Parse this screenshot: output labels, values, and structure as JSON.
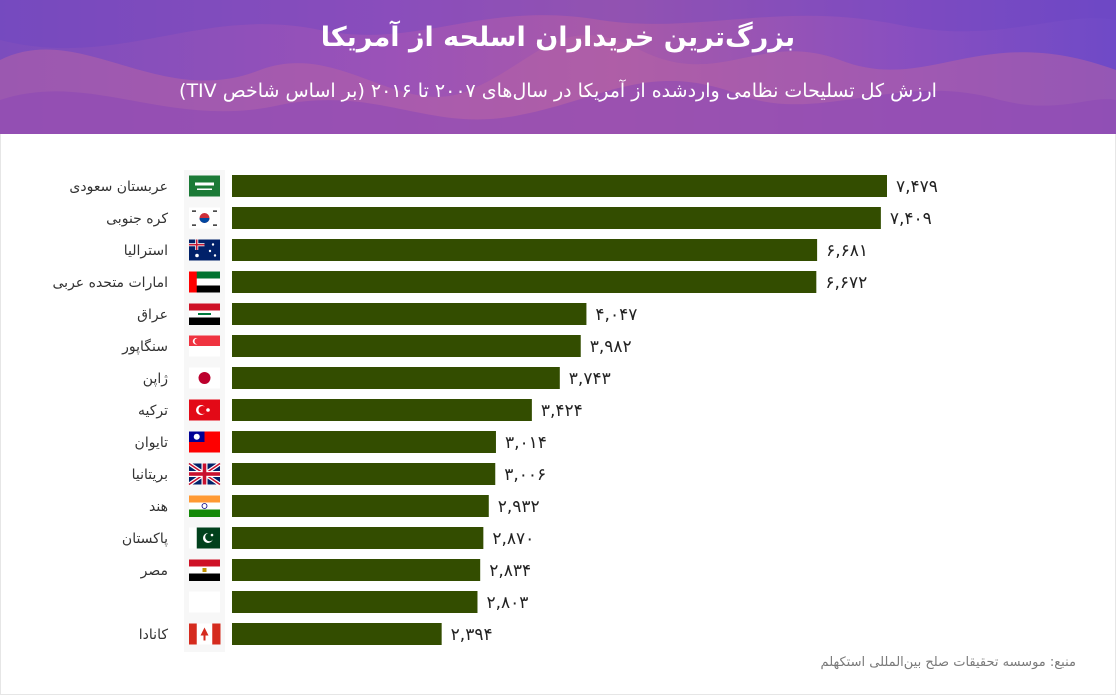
{
  "header": {
    "title": "بزرگ‌ترین خریداران اسلحه از آمریکا",
    "subtitle": "ارزش کل تسلیحات نظامی واردشده از آمریکا در سال‌های ۲۰۰۷ تا ۲۰۱۶ (بر اساس شاخص TIV)"
  },
  "source": "منبع: موسسه تحقیقات صلح بین‌المللی استکهلم",
  "colors": {
    "bar": "#334d00",
    "label": "#333333",
    "header_from": "#7c4dbd",
    "header_to": "#6f4ac7"
  },
  "chart_data": {
    "type": "bar",
    "orientation": "horizontal",
    "categories": [
      "عربستان سعودی",
      "کره جنوبی",
      "استرالیا",
      "امارات متحده عربی",
      "عراق",
      "سنگاپور",
      "ژاپن",
      "ترکیه",
      "تایوان",
      "بریتانیا",
      "هند",
      "پاکستان",
      "مصر",
      "",
      "کانادا"
    ],
    "values": [
      7479,
      7409,
      6681,
      6672,
      4047,
      3982,
      3743,
      3424,
      3014,
      3006,
      2932,
      2870,
      2834,
      2803,
      2394
    ],
    "value_labels": [
      "۷,۴۷۹",
      "۷,۴۰۹",
      "۶,۶۸۱",
      "۶,۶۷۲",
      "۴,۰۴۷",
      "۳,۹۸۲",
      "۳,۷۴۳",
      "۳,۴۲۴",
      "۳,۰۱۴",
      "۳,۰۰۶",
      "۲,۹۳۲",
      "۲,۸۷۰",
      "۲,۸۳۴",
      "۲,۸۰۳",
      "۲,۳۹۴"
    ],
    "flags": [
      "saudi-arabia-flag-icon",
      "south-korea-flag-icon",
      "australia-flag-icon",
      "uae-flag-icon",
      "iraq-flag-icon",
      "singapore-flag-icon",
      "japan-flag-icon",
      "turkey-flag-icon",
      "taiwan-flag-icon",
      "uk-flag-icon",
      "india-flag-icon",
      "pakistan-flag-icon",
      "egypt-flag-icon",
      "blank-flag-icon",
      "canada-flag-icon"
    ],
    "xlim": [
      0,
      7479
    ],
    "grid": false
  }
}
